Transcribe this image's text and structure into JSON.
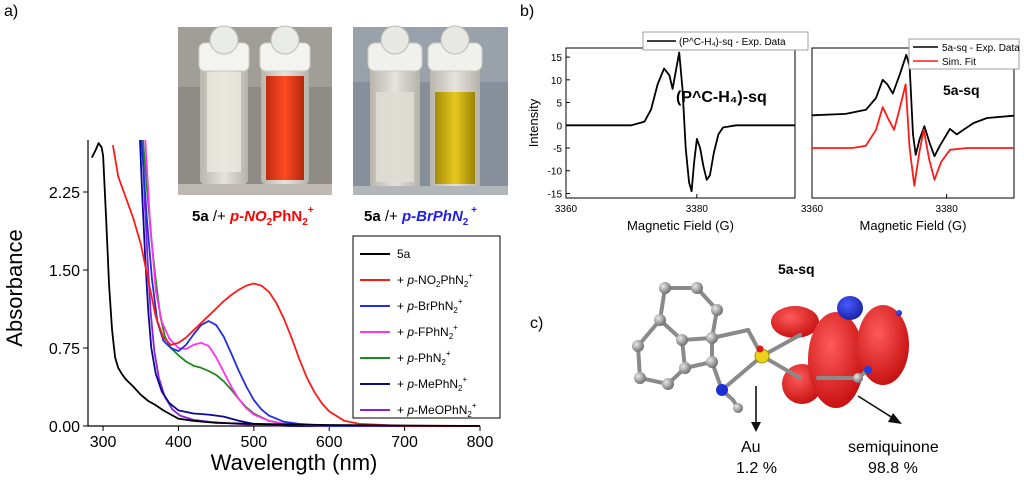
{
  "panels": {
    "a_label": "a)",
    "b_label": "b)",
    "c_label": "c)"
  },
  "colors": {
    "5a": "#000000",
    "NO2": "#ff1a1a",
    "Br": "#1f2fe0",
    "F": "#ff33ee",
    "Ph": "#1e8a1e",
    "Me": "#0a0a90",
    "MeO": "#8a1fe0",
    "exp": "#000000",
    "sim": "#ff1a1a",
    "orbital_red": "#dd1010",
    "orbital_blue": "#1020c8",
    "caption_red": "#ff0000",
    "caption_blue": "#2020e8"
  },
  "photos": {
    "left_caption": {
      "base": "5a",
      "sep": " /+ ",
      "reagent": "p-NO",
      "s1": "2",
      "r2": "PhN",
      "s2": "2",
      "sup": "+"
    },
    "right_caption": {
      "base": "5a",
      "sep": " /+ ",
      "reagent": "p-BrPhN",
      "s1": "2",
      "sup": " +"
    }
  },
  "uvvis": {
    "type": "line",
    "xlabel": "Wavelength (nm)",
    "ylabel": "Absorbance",
    "xlim": [
      280,
      800
    ],
    "ylim": [
      0,
      2.75
    ],
    "xticks": [
      "300",
      "400",
      "500",
      "600",
      "700",
      "800"
    ],
    "yticks": [
      "0.00",
      "0.75",
      "1.50",
      "2.25"
    ],
    "legend_position": "right",
    "series": [
      {
        "key": "5a",
        "legend": [
          "5a"
        ],
        "points": [
          [
            285,
            2.58
          ],
          [
            290,
            2.65
          ],
          [
            294,
            2.72
          ],
          [
            298,
            2.68
          ],
          [
            300,
            2.6
          ],
          [
            304,
            2.0
          ],
          [
            308,
            1.35
          ],
          [
            312,
            0.92
          ],
          [
            316,
            0.66
          ],
          [
            320,
            0.56
          ],
          [
            325,
            0.5
          ],
          [
            330,
            0.45
          ],
          [
            340,
            0.38
          ],
          [
            350,
            0.3
          ],
          [
            360,
            0.24
          ],
          [
            370,
            0.2
          ],
          [
            380,
            0.15
          ],
          [
            390,
            0.11
          ],
          [
            400,
            0.07
          ],
          [
            420,
            0.05
          ],
          [
            450,
            0.03
          ],
          [
            500,
            0.02
          ],
          [
            600,
            0.01
          ],
          [
            800,
            0.0
          ]
        ]
      },
      {
        "key": "NO2",
        "legend": [
          "+ ",
          "p",
          "-NO",
          "2",
          "PhN",
          "2",
          "+"
        ],
        "points": [
          [
            313,
            2.7
          ],
          [
            320,
            2.4
          ],
          [
            330,
            2.2
          ],
          [
            340,
            2.0
          ],
          [
            350,
            1.75
          ],
          [
            360,
            1.4
          ],
          [
            370,
            1.05
          ],
          [
            380,
            0.85
          ],
          [
            390,
            0.78
          ],
          [
            400,
            0.8
          ],
          [
            410,
            0.85
          ],
          [
            420,
            0.92
          ],
          [
            430,
            0.99
          ],
          [
            440,
            1.06
          ],
          [
            450,
            1.13
          ],
          [
            460,
            1.2
          ],
          [
            470,
            1.26
          ],
          [
            480,
            1.31
          ],
          [
            490,
            1.35
          ],
          [
            500,
            1.37
          ],
          [
            510,
            1.35
          ],
          [
            520,
            1.29
          ],
          [
            530,
            1.18
          ],
          [
            540,
            1.03
          ],
          [
            550,
            0.85
          ],
          [
            560,
            0.65
          ],
          [
            570,
            0.47
          ],
          [
            580,
            0.33
          ],
          [
            590,
            0.22
          ],
          [
            600,
            0.14
          ],
          [
            620,
            0.05
          ],
          [
            640,
            0.02
          ],
          [
            700,
            0.0
          ],
          [
            800,
            0.0
          ]
        ]
      },
      {
        "key": "Br",
        "legend": [
          "+ ",
          "p",
          "-BrPhN",
          "2",
          "+"
        ],
        "points": [
          [
            351,
            2.75
          ],
          [
            358,
            2.0
          ],
          [
            365,
            1.4
          ],
          [
            372,
            1.0
          ],
          [
            380,
            0.82
          ],
          [
            390,
            0.75
          ],
          [
            400,
            0.72
          ],
          [
            410,
            0.78
          ],
          [
            420,
            0.88
          ],
          [
            430,
            0.97
          ],
          [
            440,
            1.01
          ],
          [
            450,
            0.97
          ],
          [
            460,
            0.86
          ],
          [
            470,
            0.7
          ],
          [
            480,
            0.53
          ],
          [
            490,
            0.38
          ],
          [
            500,
            0.25
          ],
          [
            510,
            0.16
          ],
          [
            520,
            0.1
          ],
          [
            540,
            0.04
          ],
          [
            560,
            0.02
          ],
          [
            600,
            0.0
          ],
          [
            800,
            0.0
          ]
        ]
      },
      {
        "key": "F",
        "legend": [
          "+ ",
          "p",
          "-FPhN",
          "2",
          "+"
        ],
        "points": [
          [
            356,
            2.75
          ],
          [
            362,
            2.0
          ],
          [
            370,
            1.3
          ],
          [
            378,
            1.0
          ],
          [
            388,
            0.84
          ],
          [
            400,
            0.75
          ],
          [
            410,
            0.74
          ],
          [
            420,
            0.78
          ],
          [
            430,
            0.8
          ],
          [
            440,
            0.77
          ],
          [
            450,
            0.66
          ],
          [
            460,
            0.52
          ],
          [
            470,
            0.38
          ],
          [
            480,
            0.26
          ],
          [
            490,
            0.17
          ],
          [
            500,
            0.11
          ],
          [
            520,
            0.05
          ],
          [
            540,
            0.02
          ],
          [
            600,
            0.0
          ],
          [
            800,
            0.0
          ]
        ]
      },
      {
        "key": "Ph",
        "legend": [
          "+ ",
          "p",
          "-PhN",
          "2",
          "+"
        ],
        "points": [
          [
            353,
            2.75
          ],
          [
            358,
            2.3
          ],
          [
            364,
            1.8
          ],
          [
            370,
            1.4
          ],
          [
            376,
            1.05
          ],
          [
            382,
            0.86
          ],
          [
            390,
            0.75
          ],
          [
            400,
            0.68
          ],
          [
            410,
            0.62
          ],
          [
            420,
            0.58
          ],
          [
            430,
            0.56
          ],
          [
            440,
            0.53
          ],
          [
            450,
            0.49
          ],
          [
            460,
            0.43
          ],
          [
            470,
            0.35
          ],
          [
            480,
            0.26
          ],
          [
            490,
            0.18
          ],
          [
            500,
            0.12
          ],
          [
            520,
            0.05
          ],
          [
            540,
            0.02
          ],
          [
            600,
            0.0
          ],
          [
            800,
            0.0
          ]
        ]
      },
      {
        "key": "Me",
        "legend": [
          "+ ",
          "p",
          "-MePhN",
          "2",
          "+"
        ],
        "points": [
          [
            349,
            2.75
          ],
          [
            352,
            2.2
          ],
          [
            356,
            1.6
          ],
          [
            360,
            1.1
          ],
          [
            364,
            0.75
          ],
          [
            370,
            0.5
          ],
          [
            378,
            0.33
          ],
          [
            388,
            0.22
          ],
          [
            400,
            0.15
          ],
          [
            420,
            0.12
          ],
          [
            440,
            0.11
          ],
          [
            460,
            0.09
          ],
          [
            480,
            0.05
          ],
          [
            500,
            0.02
          ],
          [
            550,
            0.0
          ],
          [
            800,
            0.0
          ]
        ]
      },
      {
        "key": "MeO",
        "legend": [
          "+ ",
          "p",
          "-MeOPhN",
          "2",
          "+"
        ],
        "points": [
          [
            352,
            2.75
          ],
          [
            355,
            2.2
          ],
          [
            359,
            1.6
          ],
          [
            363,
            1.1
          ],
          [
            368,
            0.72
          ],
          [
            374,
            0.46
          ],
          [
            382,
            0.28
          ],
          [
            392,
            0.16
          ],
          [
            402,
            0.1
          ],
          [
            420,
            0.06
          ],
          [
            440,
            0.04
          ],
          [
            460,
            0.03
          ],
          [
            500,
            0.01
          ],
          [
            550,
            0.0
          ],
          [
            800,
            0.0
          ]
        ]
      }
    ]
  },
  "epr_left": {
    "type": "line",
    "ylabel": "Intensity",
    "xlabel": "Magnetic Field (G)",
    "xlim": [
      3360,
      3395
    ],
    "ylim": [
      -16,
      17
    ],
    "xticks": [
      "3360",
      "3380"
    ],
    "yticks": [
      "15",
      "10",
      "5",
      "0",
      "-5",
      "-10",
      "-15"
    ],
    "legend": "(P^C-H₄)-sq - Exp. Data",
    "annotation": "(P^C-H₄)-sq",
    "series": [
      {
        "key": "exp",
        "points": [
          [
            3360,
            0
          ],
          [
            3370,
            0
          ],
          [
            3372,
            0.8
          ],
          [
            3373,
            3.5
          ],
          [
            3374,
            9
          ],
          [
            3375,
            12.5
          ],
          [
            3375.8,
            11
          ],
          [
            3376.3,
            8
          ],
          [
            3376.8,
            12
          ],
          [
            3377.3,
            16
          ],
          [
            3377.8,
            8
          ],
          [
            3378.3,
            -5
          ],
          [
            3378.8,
            -12.5
          ],
          [
            3379.2,
            -14.5
          ],
          [
            3379.6,
            -8
          ],
          [
            3380,
            -3
          ],
          [
            3380.5,
            -5
          ],
          [
            3381,
            -9
          ],
          [
            3381.5,
            -12
          ],
          [
            3382,
            -11
          ],
          [
            3382.6,
            -6
          ],
          [
            3383.3,
            -2
          ],
          [
            3384,
            -0.5
          ],
          [
            3386,
            0
          ],
          [
            3395,
            0
          ]
        ]
      }
    ]
  },
  "epr_right": {
    "type": "line",
    "xlabel": "Magnetic Field (G)",
    "xlim": [
      3360,
      3390
    ],
    "ylim": [
      -16,
      17
    ],
    "xticks": [
      "3360",
      "3380"
    ],
    "legend_exp": "5a-sq - Exp. Data",
    "legend_sim": "Sim. Fit",
    "annotation": "5a-sq",
    "series": [
      {
        "key": "exp",
        "points": [
          [
            3360,
            2.2
          ],
          [
            3365,
            2.5
          ],
          [
            3368,
            3.4
          ],
          [
            3369.5,
            6
          ],
          [
            3370.5,
            10
          ],
          [
            3371.2,
            9
          ],
          [
            3372,
            7
          ],
          [
            3373,
            11
          ],
          [
            3374,
            15.5
          ],
          [
            3374.5,
            13
          ],
          [
            3375,
            -2
          ],
          [
            3375.4,
            -6.5
          ],
          [
            3376,
            -3
          ],
          [
            3376.7,
            -0.2
          ],
          [
            3377.5,
            -4
          ],
          [
            3378.2,
            -6.8
          ],
          [
            3379,
            -4.5
          ],
          [
            3380,
            -2
          ],
          [
            3380.5,
            -0.8
          ],
          [
            3381.5,
            -2
          ],
          [
            3382.5,
            -1
          ],
          [
            3384,
            0.5
          ],
          [
            3386,
            1.6
          ],
          [
            3390,
            2.1
          ]
        ]
      },
      {
        "key": "sim",
        "points": [
          [
            3360,
            -5
          ],
          [
            3366,
            -5
          ],
          [
            3368,
            -4.5
          ],
          [
            3369.5,
            -1
          ],
          [
            3370.5,
            4
          ],
          [
            3371.3,
            1.5
          ],
          [
            3372.2,
            -1
          ],
          [
            3373,
            3.5
          ],
          [
            3373.9,
            9
          ],
          [
            3374.5,
            -5
          ],
          [
            3375.2,
            -13.3
          ],
          [
            3376,
            -5.5
          ],
          [
            3376.6,
            -1
          ],
          [
            3377.4,
            -7.5
          ],
          [
            3378.2,
            -12
          ],
          [
            3379.2,
            -8
          ],
          [
            3380.5,
            -5.4
          ],
          [
            3383,
            -5
          ],
          [
            3390,
            -5
          ]
        ]
      }
    ]
  },
  "orbital": {
    "title": "5a-sq",
    "au_label": "Au",
    "au_percent": "1.2 %",
    "sq_label": "semiquinone",
    "sq_percent": "98.8 %"
  }
}
